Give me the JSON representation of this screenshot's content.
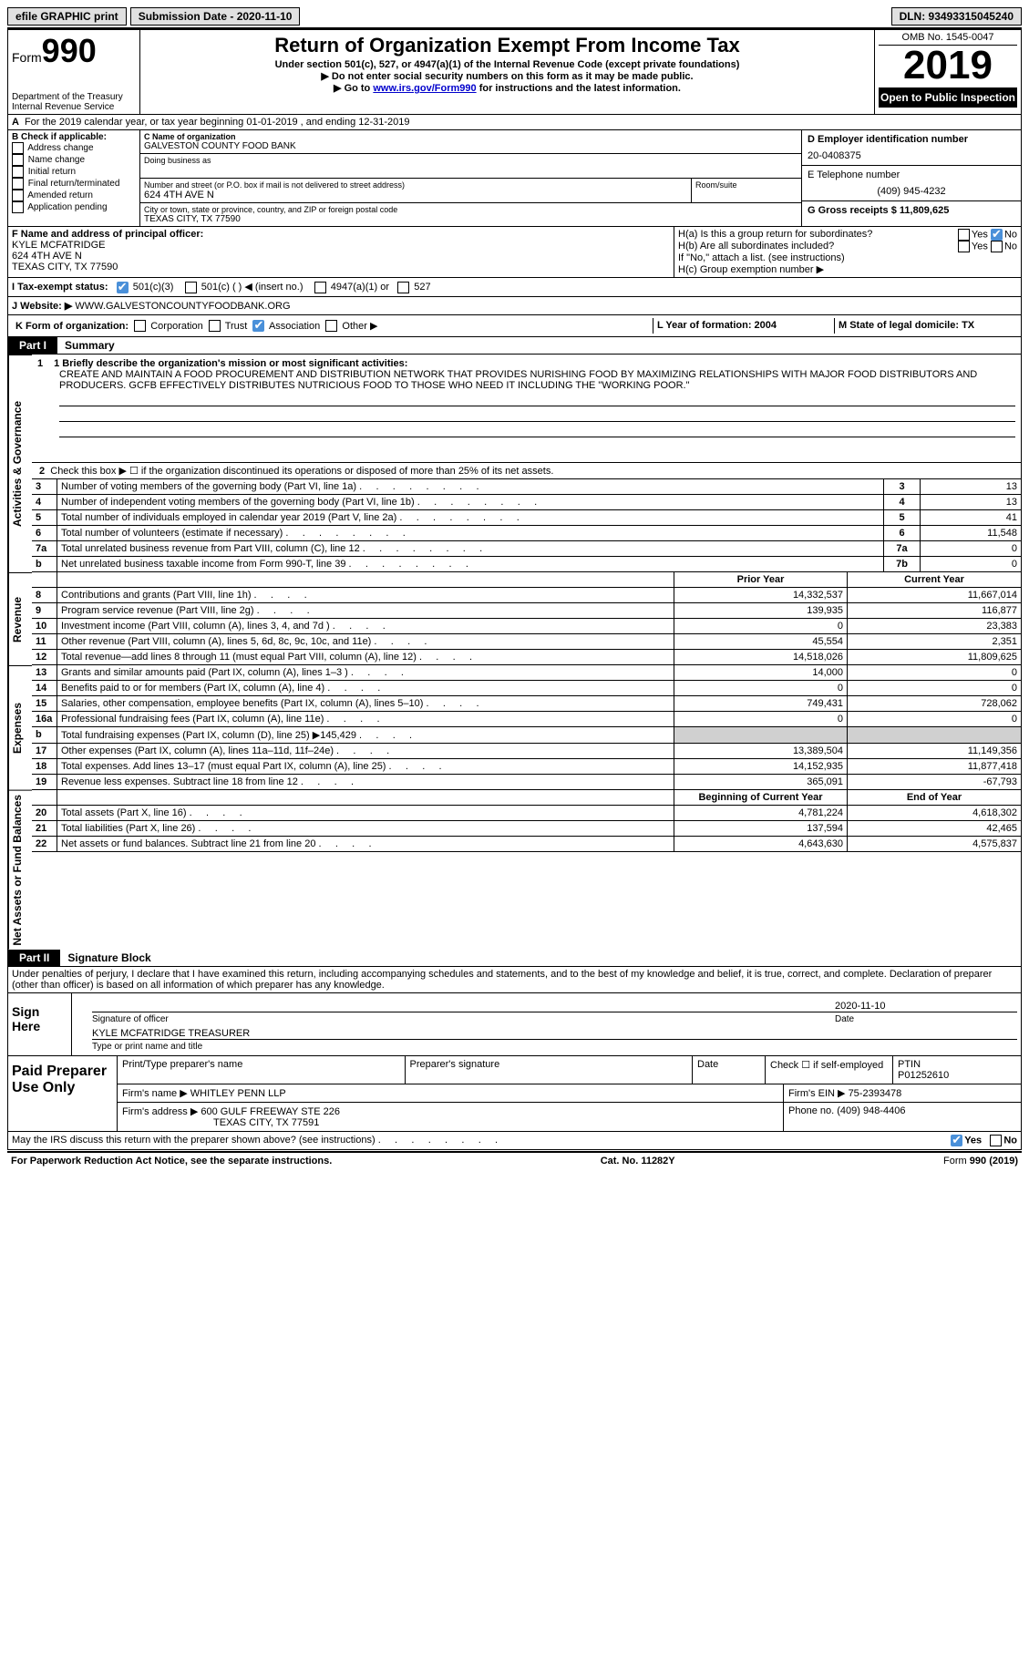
{
  "topbar": {
    "efile": "efile GRAPHIC print",
    "submission_label": "Submission Date - 2020-11-10",
    "dln": "DLN: 93493315045240"
  },
  "header": {
    "form_label": "Form",
    "form_num": "990",
    "dept": "Department of the Treasury\nInternal Revenue Service",
    "title": "Return of Organization Exempt From Income Tax",
    "sub1": "Under section 501(c), 527, or 4947(a)(1) of the Internal Revenue Code (except private foundations)",
    "sub2": "▶ Do not enter social security numbers on this form as it may be made public.",
    "sub3_pre": "▶ Go to ",
    "sub3_link": "www.irs.gov/Form990",
    "sub3_post": " for instructions and the latest information.",
    "omb": "OMB No. 1545-0047",
    "year": "2019",
    "open": "Open to Public Inspection"
  },
  "row_a": "For the 2019 calendar year, or tax year beginning 01-01-2019    , and ending 12-31-2019",
  "col_b": {
    "title": "B Check if applicable:",
    "items": [
      "Address change",
      "Name change",
      "Initial return",
      "Final return/terminated",
      "Amended return",
      "Application pending"
    ]
  },
  "col_c": {
    "name_label": "C Name of organization",
    "name": "GALVESTON COUNTY FOOD BANK",
    "dba_label": "Doing business as",
    "dba": "",
    "addr_label": "Number and street (or P.O. box if mail is not delivered to street address)",
    "room_label": "Room/suite",
    "addr": "624 4TH AVE N",
    "city_label": "City or town, state or province, country, and ZIP or foreign postal code",
    "city": "TEXAS CITY, TX  77590"
  },
  "col_d": {
    "ein_label": "D Employer identification number",
    "ein": "20-0408375",
    "tel_label": "E Telephone number",
    "tel": "(409) 945-4232",
    "gross_label": "G Gross receipts $ 11,809,625"
  },
  "row_f": {
    "label": "F  Name and address of principal officer:",
    "name": "KYLE MCFATRIDGE",
    "addr1": "624 4TH AVE N",
    "addr2": "TEXAS CITY, TX  77590"
  },
  "row_h": {
    "ha": "H(a)  Is this a group return for subordinates?",
    "hb": "H(b)  Are all subordinates included?",
    "hb_note": "If \"No,\" attach a list. (see instructions)",
    "hc": "H(c)  Group exemption number ▶"
  },
  "row_i": {
    "label": "I    Tax-exempt status:",
    "opt1": "501(c)(3)",
    "opt2": "501(c) (  ) ◀ (insert no.)",
    "opt3": "4947(a)(1) or",
    "opt4": "527"
  },
  "row_j": {
    "label": "J    Website: ▶",
    "val": "WWW.GALVESTONCOUNTYFOODBANK.ORG"
  },
  "row_k": {
    "label": "K Form of organization:",
    "o1": "Corporation",
    "o2": "Trust",
    "o3": "Association",
    "o4": "Other ▶"
  },
  "row_l": "L Year of formation: 2004",
  "row_m": "M State of legal domicile: TX",
  "part1": {
    "label": "Part I",
    "title": "Summary"
  },
  "mission_label": "1   Briefly describe the organization's mission or most significant activities:",
  "mission": "CREATE AND MAINTAIN A FOOD PROCUREMENT AND DISTRIBUTION NETWORK THAT PROVIDES NURISHING FOOD BY MAXIMIZING RELATIONSHIPS WITH MAJOR FOOD DISTRIBUTORS AND PRODUCERS. GCFB EFFECTIVELY DISTRIBUTES NUTRICIOUS FOOD TO THOSE WHO NEED IT INCLUDING THE \"WORKING POOR.\"",
  "line2": "Check this box ▶ ☐  if the organization discontinued its operations or disposed of more than 25% of its net assets.",
  "sides": {
    "ag": "Activities & Governance",
    "rev": "Revenue",
    "exp": "Expenses",
    "na": "Net Assets or Fund Balances"
  },
  "lines_single": [
    {
      "n": "3",
      "t": "Number of voting members of the governing body (Part VI, line 1a)",
      "b": "3",
      "v": "13"
    },
    {
      "n": "4",
      "t": "Number of independent voting members of the governing body (Part VI, line 1b)",
      "b": "4",
      "v": "13"
    },
    {
      "n": "5",
      "t": "Total number of individuals employed in calendar year 2019 (Part V, line 2a)",
      "b": "5",
      "v": "41"
    },
    {
      "n": "6",
      "t": "Total number of volunteers (estimate if necessary)",
      "b": "6",
      "v": "11,548"
    },
    {
      "n": "7a",
      "t": "Total unrelated business revenue from Part VIII, column (C), line 12",
      "b": "7a",
      "v": "0"
    },
    {
      "n": "b",
      "t": "Net unrelated business taxable income from Form 990-T, line 39",
      "b": "7b",
      "v": "0"
    }
  ],
  "hdr_py": "Prior Year",
  "hdr_cy": "Current Year",
  "lines_rev": [
    {
      "n": "8",
      "t": "Contributions and grants (Part VIII, line 1h)",
      "p": "14,332,537",
      "c": "11,667,014"
    },
    {
      "n": "9",
      "t": "Program service revenue (Part VIII, line 2g)",
      "p": "139,935",
      "c": "116,877"
    },
    {
      "n": "10",
      "t": "Investment income (Part VIII, column (A), lines 3, 4, and 7d )",
      "p": "0",
      "c": "23,383"
    },
    {
      "n": "11",
      "t": "Other revenue (Part VIII, column (A), lines 5, 6d, 8c, 9c, 10c, and 11e)",
      "p": "45,554",
      "c": "2,351"
    },
    {
      "n": "12",
      "t": "Total revenue—add lines 8 through 11 (must equal Part VIII, column (A), line 12)",
      "p": "14,518,026",
      "c": "11,809,625"
    }
  ],
  "lines_exp": [
    {
      "n": "13",
      "t": "Grants and similar amounts paid (Part IX, column (A), lines 1–3 )",
      "p": "14,000",
      "c": "0"
    },
    {
      "n": "14",
      "t": "Benefits paid to or for members (Part IX, column (A), line 4)",
      "p": "0",
      "c": "0"
    },
    {
      "n": "15",
      "t": "Salaries, other compensation, employee benefits (Part IX, column (A), lines 5–10)",
      "p": "749,431",
      "c": "728,062"
    },
    {
      "n": "16a",
      "t": "Professional fundraising fees (Part IX, column (A), line 11e)",
      "p": "0",
      "c": "0"
    },
    {
      "n": "b",
      "t": "Total fundraising expenses (Part IX, column (D), line 25) ▶145,429",
      "p": "gray",
      "c": "gray"
    },
    {
      "n": "17",
      "t": "Other expenses (Part IX, column (A), lines 11a–11d, 11f–24e)",
      "p": "13,389,504",
      "c": "11,149,356"
    },
    {
      "n": "18",
      "t": "Total expenses. Add lines 13–17 (must equal Part IX, column (A), line 25)",
      "p": "14,152,935",
      "c": "11,877,418"
    },
    {
      "n": "19",
      "t": "Revenue less expenses. Subtract line 18 from line 12",
      "p": "365,091",
      "c": "-67,793"
    }
  ],
  "hdr_by": "Beginning of Current Year",
  "hdr_ey": "End of Year",
  "lines_na": [
    {
      "n": "20",
      "t": "Total assets (Part X, line 16)",
      "p": "4,781,224",
      "c": "4,618,302"
    },
    {
      "n": "21",
      "t": "Total liabilities (Part X, line 26)",
      "p": "137,594",
      "c": "42,465"
    },
    {
      "n": "22",
      "t": "Net assets or fund balances. Subtract line 21 from line 20",
      "p": "4,643,630",
      "c": "4,575,837"
    }
  ],
  "part2": {
    "label": "Part II",
    "title": "Signature Block"
  },
  "sig_text": "Under penalties of perjury, I declare that I have examined this return, including accompanying schedules and statements, and to the best of my knowledge and belief, it is true, correct, and complete. Declaration of preparer (other than officer) is based on all information of which preparer has any knowledge.",
  "sign": {
    "here": "Sign Here",
    "sig_label": "Signature of officer",
    "date_label": "Date",
    "date": "2020-11-10",
    "name": "KYLE MCFATRIDGE  TREASURER",
    "name_label": "Type or print name and title"
  },
  "paid": {
    "title": "Paid Preparer Use Only",
    "h_name": "Print/Type preparer's name",
    "h_sig": "Preparer's signature",
    "h_date": "Date",
    "h_check": "Check ☐ if self-employed",
    "h_ptin": "PTIN",
    "ptin": "P01252610",
    "firm_name_l": "Firm's name    ▶",
    "firm_name": "WHITLEY PENN LLP",
    "firm_ein_l": "Firm's EIN ▶",
    "firm_ein": "75-2393478",
    "firm_addr_l": "Firm's address ▶",
    "firm_addr1": "600 GULF FREEWAY STE 226",
    "firm_addr2": "TEXAS CITY, TX  77591",
    "phone_l": "Phone no.",
    "phone": "(409) 948-4406"
  },
  "footer": {
    "discuss": "May the IRS discuss this return with the preparer shown above? (see instructions)",
    "yes": "Yes",
    "no": "No",
    "paperwork": "For Paperwork Reduction Act Notice, see the separate instructions.",
    "cat": "Cat. No. 11282Y",
    "form": "Form 990 (2019)"
  }
}
